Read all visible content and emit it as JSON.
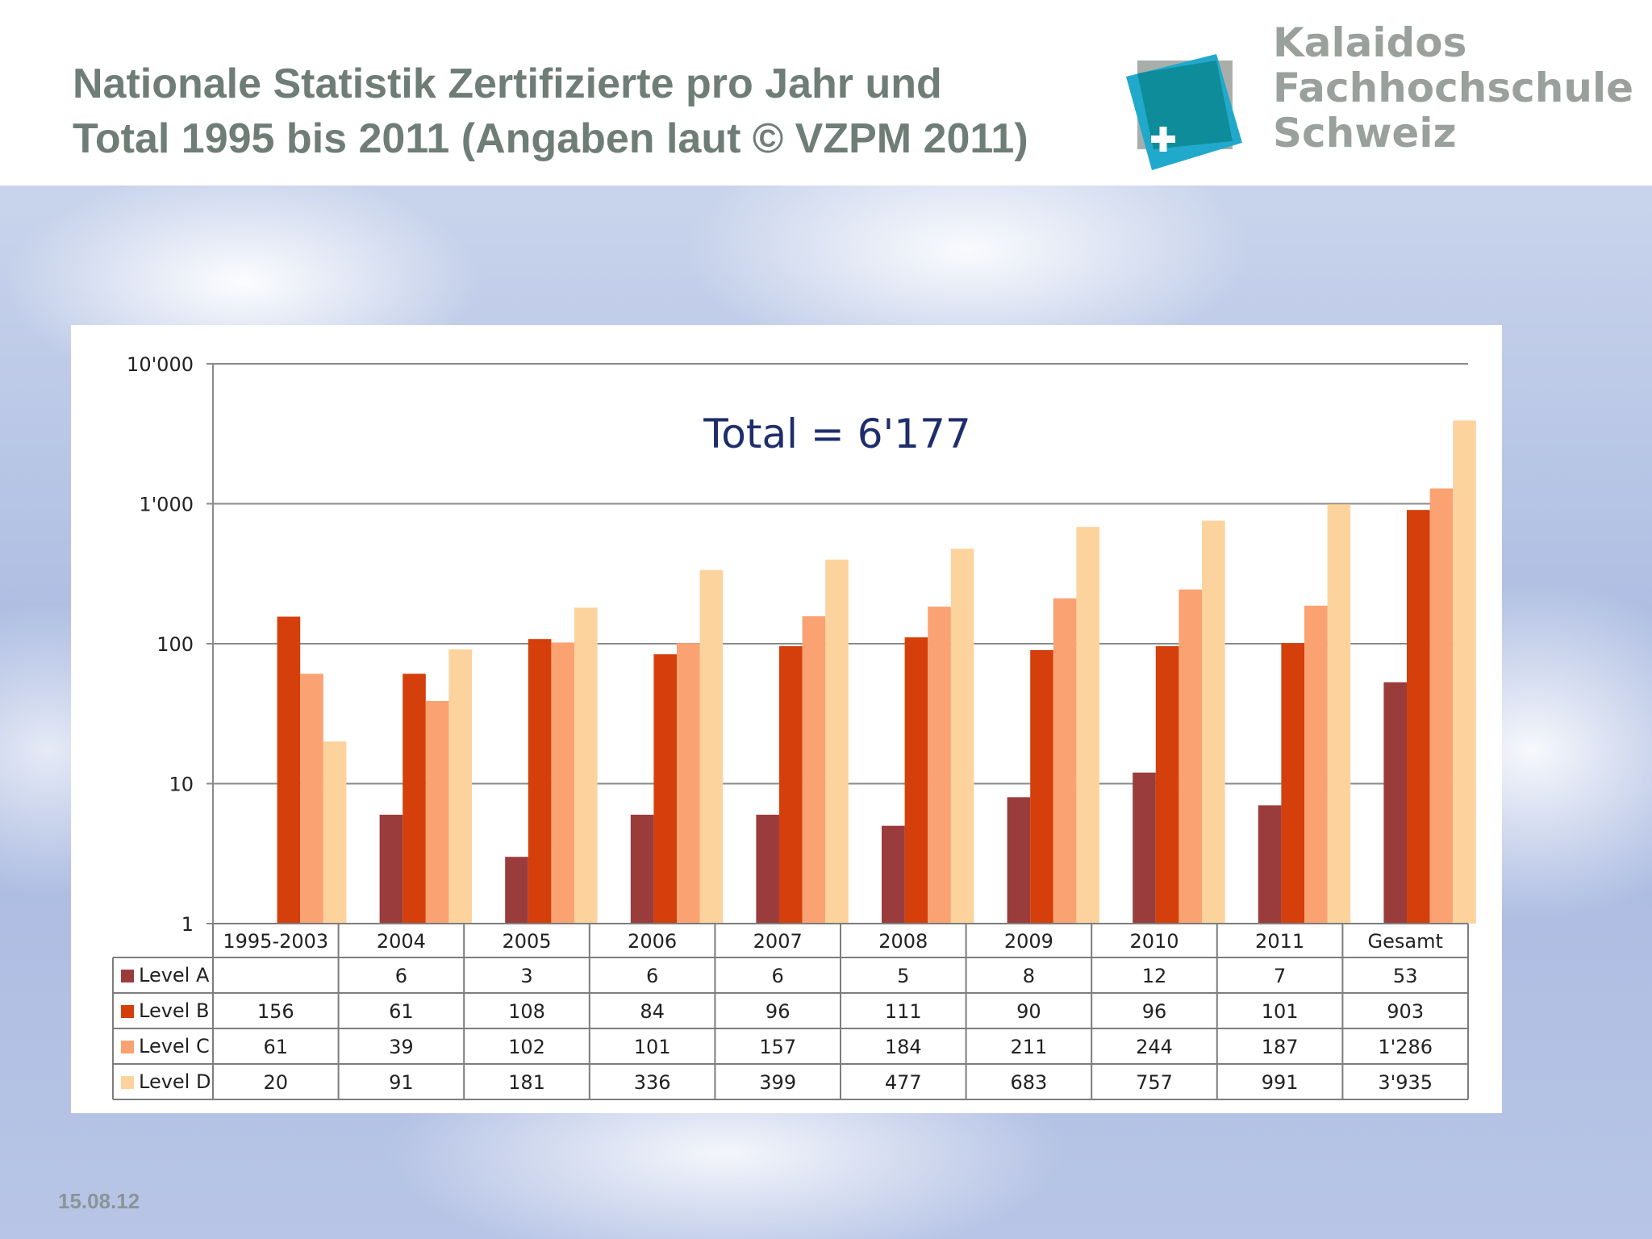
{
  "slide": {
    "title_line1": "Nationale Statistik Zertifizierte pro Jahr und",
    "title_line2": "Total 1995 bis 2011 (Angaben laut © VZPM 2011)",
    "date": "15.08.12"
  },
  "logo": {
    "line1": "Kalaidos",
    "line2": "Fachhochschule",
    "line3": "Schweiz",
    "colors": {
      "teal": "#0f8c9a",
      "cyan": "#21a9cc",
      "grey": "#a9aeab"
    }
  },
  "chart_data": {
    "type": "bar",
    "y_scale": "log",
    "ylim": [
      1,
      10000
    ],
    "ytick_labels": [
      "1",
      "10",
      "100",
      "1'000",
      "10'000"
    ],
    "ytick_values": [
      1,
      10,
      100,
      1000,
      10000
    ],
    "annotation": "Total = 6'177",
    "categories": [
      "1995-2003",
      "2004",
      "2005",
      "2006",
      "2007",
      "2008",
      "2009",
      "2010",
      "2011",
      "Gesamt"
    ],
    "series": [
      {
        "name": "Level A",
        "color": "#9b3c3c",
        "values": [
          null,
          6,
          3,
          6,
          6,
          5,
          8,
          12,
          7,
          53
        ],
        "table": [
          "",
          "6",
          "3",
          "6",
          "6",
          "5",
          "8",
          "12",
          "7",
          "53"
        ]
      },
      {
        "name": "Level B",
        "color": "#d43f0c",
        "values": [
          156,
          61,
          108,
          84,
          96,
          111,
          90,
          96,
          101,
          903
        ],
        "table": [
          "156",
          "61",
          "108",
          "84",
          "96",
          "111",
          "90",
          "96",
          "101",
          "903"
        ]
      },
      {
        "name": "Level C",
        "color": "#fba272",
        "values": [
          61,
          39,
          102,
          101,
          157,
          184,
          211,
          244,
          187,
          1286
        ],
        "table": [
          "61",
          "39",
          "102",
          "101",
          "157",
          "184",
          "211",
          "244",
          "187",
          "1'286"
        ]
      },
      {
        "name": "Level D",
        "color": "#fdd39d",
        "values": [
          20,
          91,
          181,
          336,
          399,
          477,
          683,
          757,
          991,
          3935
        ],
        "table": [
          "20",
          "91",
          "181",
          "336",
          "399",
          "477",
          "683",
          "757",
          "991",
          "3'935"
        ]
      }
    ],
    "grid": true,
    "legend": "data table below chart"
  }
}
